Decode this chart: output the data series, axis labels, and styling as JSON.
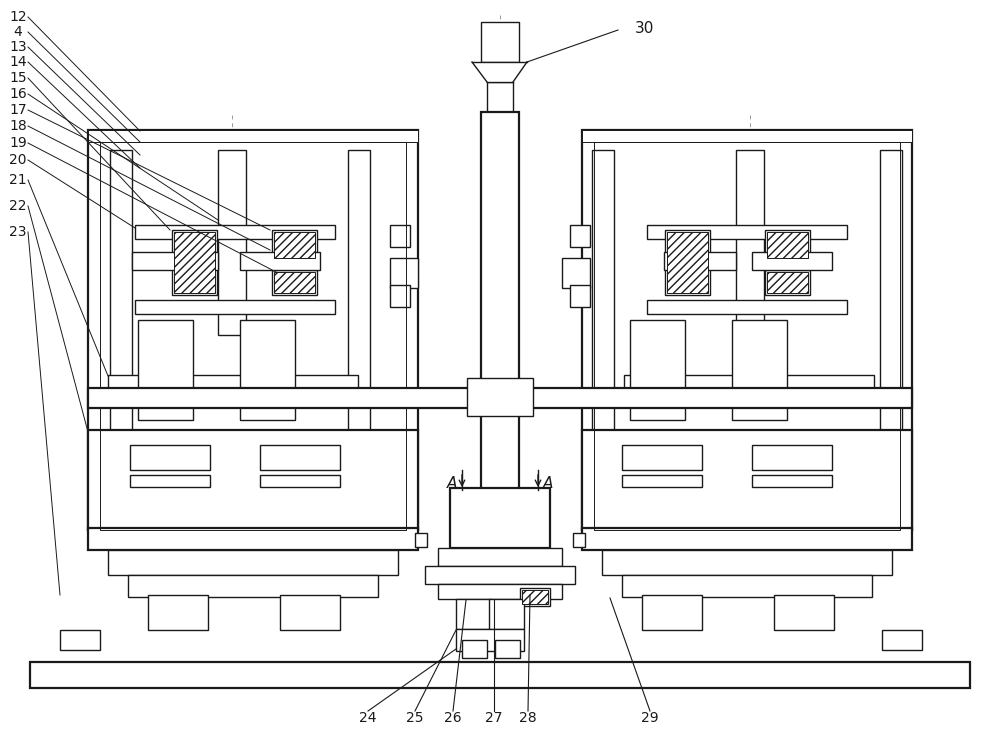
{
  "bg": "#ffffff",
  "lc": "#1a1a1a",
  "dc": "#888888",
  "lw": 1.0,
  "lw2": 1.6,
  "lwt": 0.7
}
